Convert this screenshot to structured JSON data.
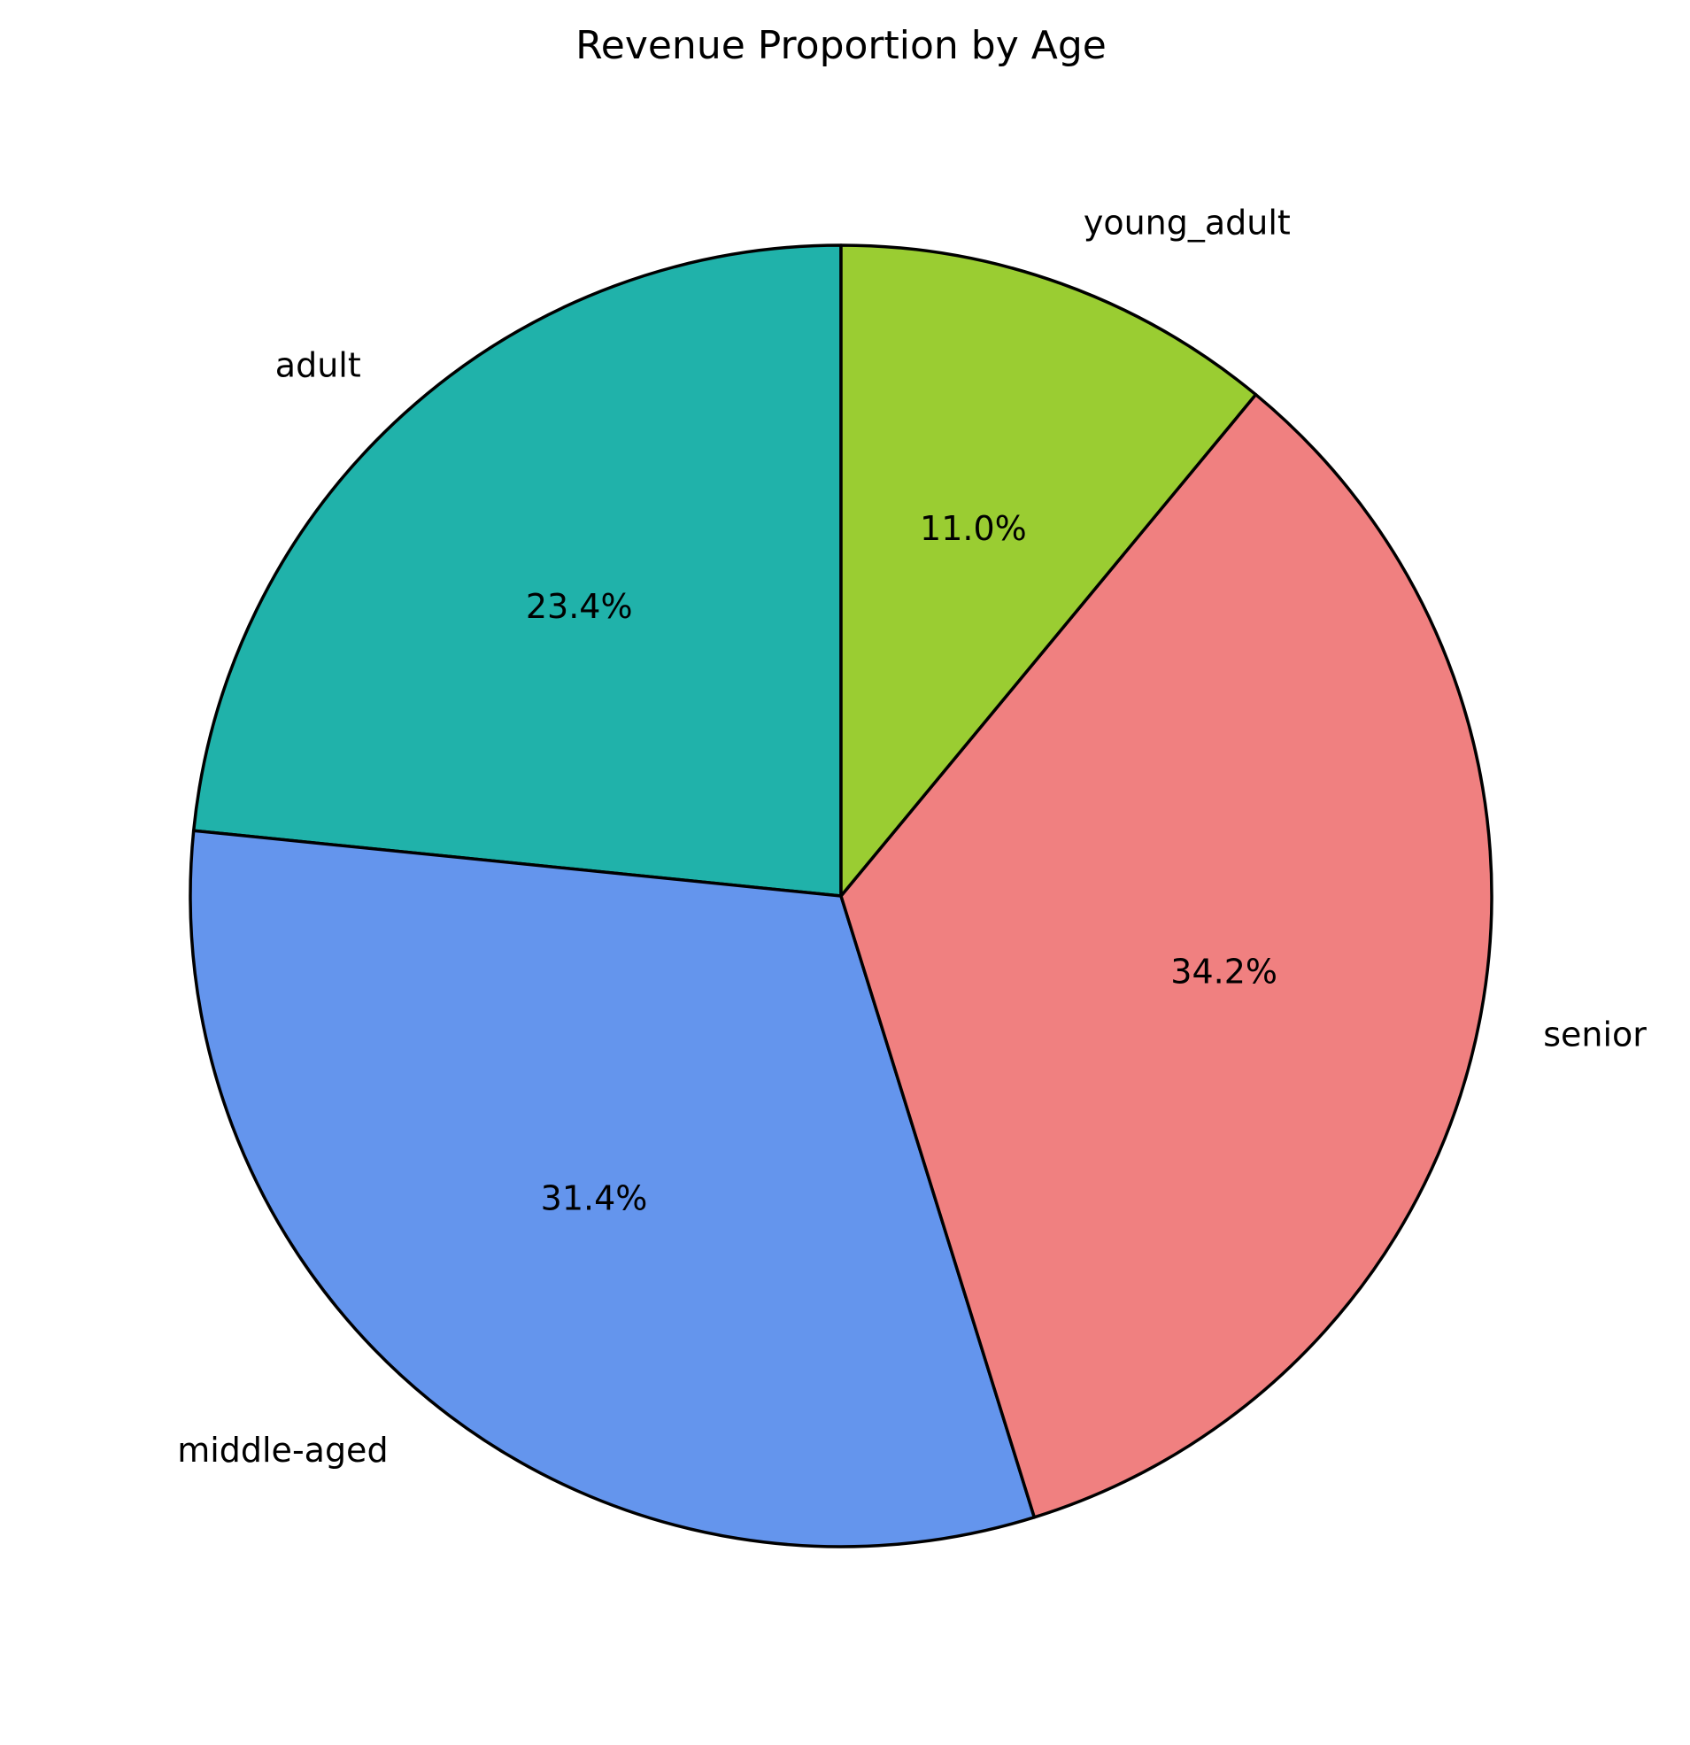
{
  "chart_data": {
    "type": "pie",
    "title": "Revenue Proportion by Age",
    "start_angle_deg": 90,
    "direction": "counterclockwise",
    "edge_color": "#000000",
    "slices": [
      {
        "label": "adult",
        "value": 23.4,
        "pct_label": "23.4%",
        "color": "#20B2AA"
      },
      {
        "label": "middle-aged",
        "value": 31.4,
        "pct_label": "31.4%",
        "color": "#6495ED"
      },
      {
        "label": "senior",
        "value": 34.2,
        "pct_label": "34.2%",
        "color": "#F08080"
      },
      {
        "label": "young_adult",
        "value": 11.0,
        "pct_label": "11.0%",
        "color": "#9ACD32"
      }
    ]
  }
}
